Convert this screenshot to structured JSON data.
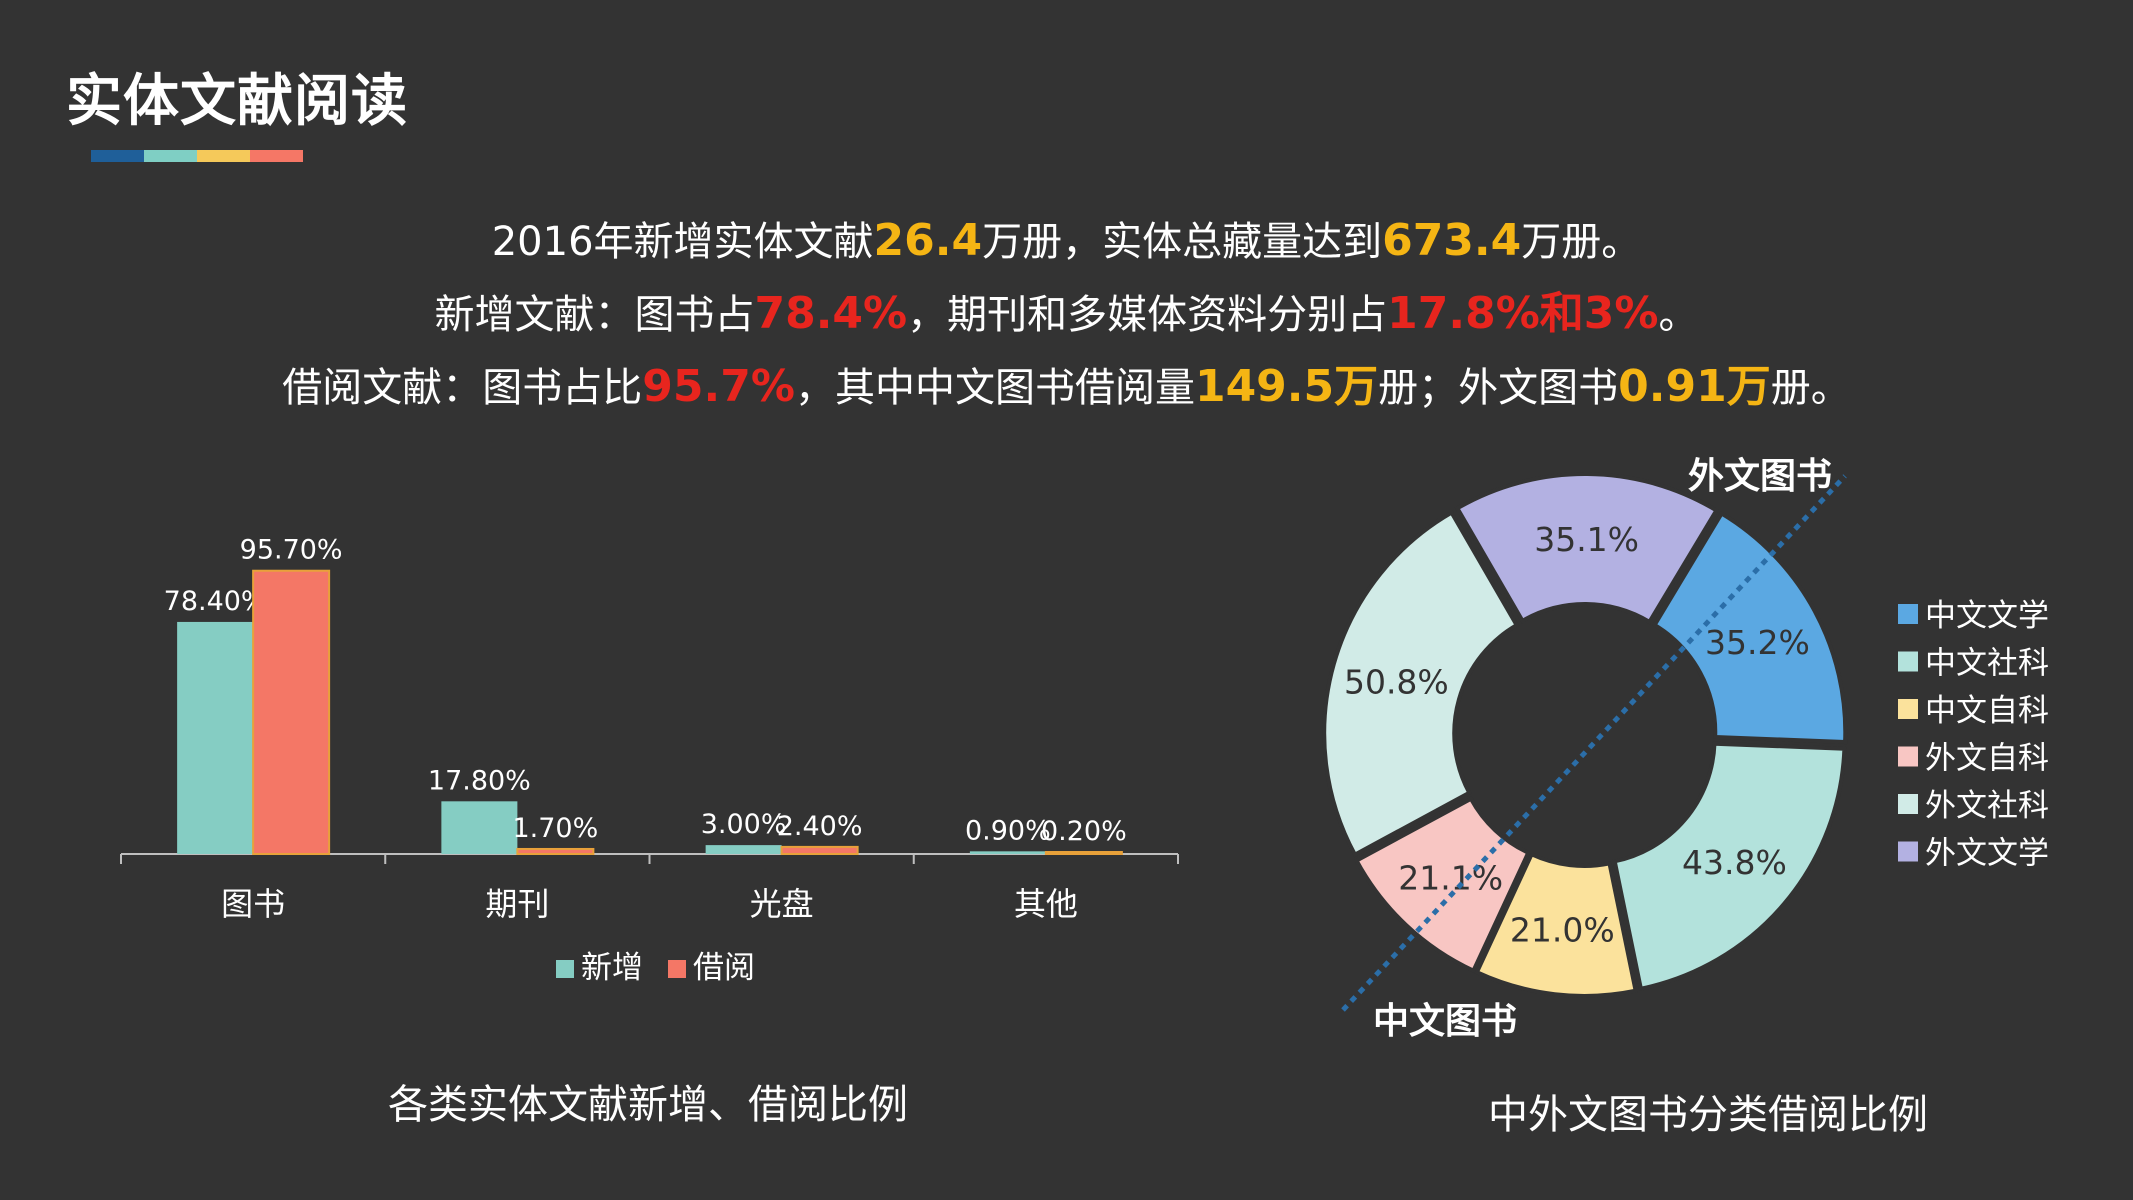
{
  "page": {
    "title": "实体文献阅读",
    "accent_colors": [
      "#1f5f99",
      "#7fcfc4",
      "#f5c95a",
      "#f57766"
    ]
  },
  "summary": {
    "line1": {
      "t1": "2016年新增实体文献",
      "v1": "26.4",
      "t2": "万册，实体总藏量达到",
      "v2": "673.4",
      "t3": "万册。"
    },
    "line2": {
      "t1": "新增文献：图书占",
      "v1": "78.4%",
      "t2": "，期刊和多媒体资料分别占",
      "v2": "17.8%和3%",
      "t3": "。"
    },
    "line3": {
      "t1": "借阅文献：图书占比",
      "v1": "95.7%",
      "t2": "，其中中文图书借阅量",
      "v2": "149.5万",
      "t3": "册；外文图书",
      "v3": "0.91万",
      "t4": "册。"
    }
  },
  "bar_caption": "各类实体文献新增、借阅比例",
  "donut_caption": "中外文图书分类借阅比例",
  "chart_data": [
    {
      "type": "bar",
      "categories": [
        "图书",
        "期刊",
        "光盘",
        "其他"
      ],
      "series": [
        {
          "name": "新增",
          "values": [
            78.4,
            17.8,
            3.0,
            0.9
          ],
          "labels": [
            "78.40%",
            "17.80%",
            "3.00%",
            "0.90%"
          ],
          "color": "#85cdc3"
        },
        {
          "name": "借阅",
          "values": [
            95.7,
            1.7,
            2.4,
            0.2
          ],
          "labels": [
            "95.70%",
            "1.70%",
            "2.40%",
            "0.20%"
          ],
          "color": "#f47766"
        }
      ],
      "ylim": [
        0,
        100
      ],
      "grid": false,
      "legend": "bottom"
    },
    {
      "type": "pie",
      "variant": "donut",
      "slices": [
        {
          "name": "中文文学",
          "value": 35.2,
          "label": "35.2%",
          "color": "#5ba8e2"
        },
        {
          "name": "中文社科",
          "value": 43.8,
          "label": "43.8%",
          "color": "#b3e2dc"
        },
        {
          "name": "中文自科",
          "value": 21.0,
          "label": "21.0%",
          "color": "#fbe29c"
        },
        {
          "name": "外文自科",
          "value": 21.1,
          "label": "21.1%",
          "color": "#f8c6c3"
        },
        {
          "name": "外文社科",
          "value": 50.8,
          "label": "50.8%",
          "color": "#d1ebe7"
        },
        {
          "name": "外文文学",
          "value": 35.1,
          "label": "35.1%",
          "color": "#b3b1e2"
        }
      ],
      "group_labels": {
        "foreign": "外文图书",
        "chinese": "中文图书"
      },
      "divider_color": "#2b6ea8",
      "legend": "right"
    }
  ]
}
